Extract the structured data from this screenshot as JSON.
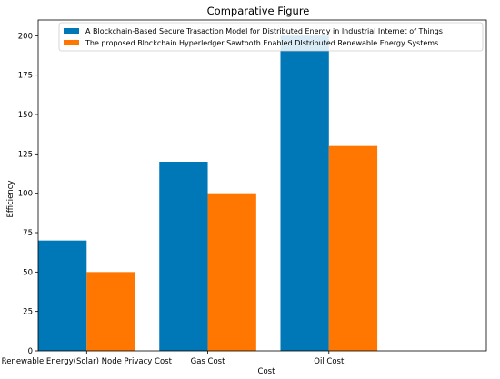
{
  "chart_data": {
    "type": "bar",
    "title": "Comparative Figure",
    "xlabel": "Cost",
    "ylabel": "Efficiency",
    "categories": [
      "Renewable Energy(Solar) Node Privacy Cost",
      "Gas Cost",
      "Oil Cost"
    ],
    "series": [
      {
        "name": "A Blockchain-Based Secure Trasaction Model for Distributed Energy in Industrial Internet of Things",
        "values": [
          70,
          120,
          200
        ],
        "color": "#0077b6"
      },
      {
        "name": "The proposed Blockchain Hyperledger Sawtooth Enabled DIstributed Renewable Energy Systems",
        "values": [
          50,
          100,
          130
        ],
        "color": "#ff7700"
      }
    ],
    "ylim": [
      0,
      210
    ],
    "yticks": [
      "0",
      "25",
      "50",
      "75",
      "100",
      "125",
      "150",
      "175",
      "200"
    ],
    "grid": false,
    "legend_position": "top-right"
  }
}
